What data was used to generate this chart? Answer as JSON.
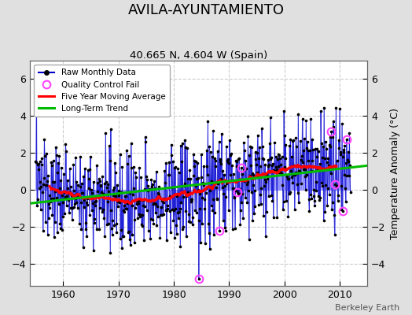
{
  "title": "AVILA-AYUNTAMIENTO",
  "subtitle": "40.665 N, 4.604 W (Spain)",
  "ylabel": "Temperature Anomaly (°C)",
  "credit": "Berkeley Earth",
  "xlim": [
    1954,
    2015
  ],
  "ylim": [
    -5.2,
    7.0
  ],
  "yticks": [
    -4,
    -2,
    0,
    2,
    4,
    6
  ],
  "xticks": [
    1960,
    1970,
    1980,
    1990,
    2000,
    2010
  ],
  "background_color": "#e0e0e0",
  "plot_background": "#ffffff",
  "grid_color": "#cccccc",
  "bar_color": "#8888ff",
  "line_color": "#0000cc",
  "ma_color": "#ff0000",
  "trend_color": "#00bb00",
  "qc_color": "#ff44ff",
  "seed": 137,
  "n_months": 684,
  "start_year": 1955.0,
  "noise_std": 1.35,
  "ma_window": 60
}
